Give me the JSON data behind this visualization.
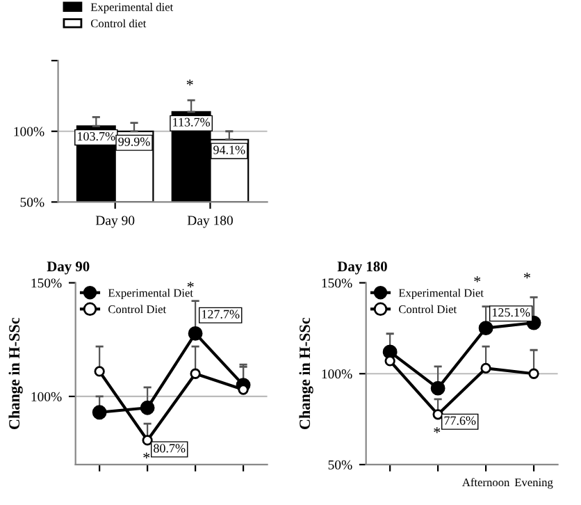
{
  "chart_data": [
    {
      "type": "bar",
      "categories": [
        "Day 90",
        "Day 180"
      ],
      "ylim": [
        50,
        150
      ],
      "yticks": [
        {
          "value": 50,
          "label": "50%"
        },
        {
          "value": 100,
          "label": "100%"
        },
        {
          "value": 150,
          "label": null
        }
      ],
      "legend": "top left",
      "ref_lines": [
        {
          "axis": "y",
          "value": 100,
          "color": "#bbbbbb"
        }
      ],
      "series": [
        {
          "name": "Experimental diet",
          "color": "#000000",
          "values": [
            103.7,
            113.7
          ],
          "errors": [
            [
              103.7,
              110
            ],
            [
              113.7,
              122
            ]
          ],
          "value_labels": [
            "103.7%",
            "113.7%"
          ]
        },
        {
          "name": "Control diet",
          "color": "#ffffff",
          "values": [
            99.9,
            94.1
          ],
          "errors": [
            [
              99.9,
              106
            ],
            [
              94.1,
              100
            ]
          ],
          "value_labels": [
            "99.9%",
            "94.1%"
          ]
        }
      ],
      "annotations": [
        "*"
      ]
    },
    {
      "type": "line",
      "title": "Day 90",
      "ylabel": "Change in H-SSc",
      "categories": [
        null,
        null,
        null,
        null
      ],
      "ylim": [
        70,
        150
      ],
      "yticks": [
        {
          "value": 100,
          "label": "100%"
        },
        {
          "value": 150,
          "label": "150%"
        }
      ],
      "legend": "top left",
      "marker": "circle",
      "ref_lines": [
        {
          "axis": "y",
          "value": 100,
          "color": "#bbbbbb"
        }
      ],
      "series": [
        {
          "name": "Experimental Diet",
          "color": "#000000",
          "values": [
            93,
            95,
            127.7,
            105
          ],
          "errors": [
            [
              93,
              100
            ],
            [
              95,
              104
            ],
            [
              127.7,
              142
            ],
            [
              105,
              114
            ]
          ],
          "value_labels": [
            null,
            null,
            "127.7%",
            null
          ]
        },
        {
          "name": "Control Diet",
          "color": "#ffffff",
          "values": [
            111,
            80.7,
            110,
            103
          ],
          "errors": [
            [
              111,
              122
            ],
            [
              80.7,
              88
            ],
            [
              110,
              122
            ],
            [
              103,
              113
            ]
          ],
          "value_labels": [
            null,
            "80.7%",
            null,
            null
          ]
        }
      ],
      "annotations": [
        "*",
        "*"
      ]
    },
    {
      "type": "line",
      "title": "Day 180",
      "ylabel": "Change in H-SSc",
      "categories": [
        null,
        null,
        "Afternoon",
        "Evening"
      ],
      "ylim": [
        50,
        150
      ],
      "yticks": [
        {
          "value": 50,
          "label": "50%"
        },
        {
          "value": 100,
          "label": "100%"
        },
        {
          "value": 150,
          "label": "150%"
        }
      ],
      "legend": "top left",
      "marker": "circle",
      "ref_lines": [
        {
          "axis": "y",
          "value": 100,
          "color": "#bbbbbb"
        }
      ],
      "series": [
        {
          "name": "Experimental Diet",
          "color": "#000000",
          "values": [
            112,
            92,
            125.1,
            128
          ],
          "errors": [
            [
              112,
              122
            ],
            [
              92,
              104
            ],
            [
              125.1,
              137
            ],
            [
              128,
              142
            ]
          ],
          "value_labels": [
            null,
            null,
            "125.1%",
            null
          ]
        },
        {
          "name": "Control Diet",
          "color": "#ffffff",
          "values": [
            107,
            77.6,
            103,
            100
          ],
          "errors": [
            [
              107,
              107
            ],
            [
              77.6,
              86
            ],
            [
              103,
              115
            ],
            [
              100,
              113
            ]
          ],
          "value_labels": [
            null,
            "77.6%",
            null,
            null
          ]
        }
      ],
      "annotations": [
        "*",
        "*",
        "*"
      ]
    }
  ]
}
